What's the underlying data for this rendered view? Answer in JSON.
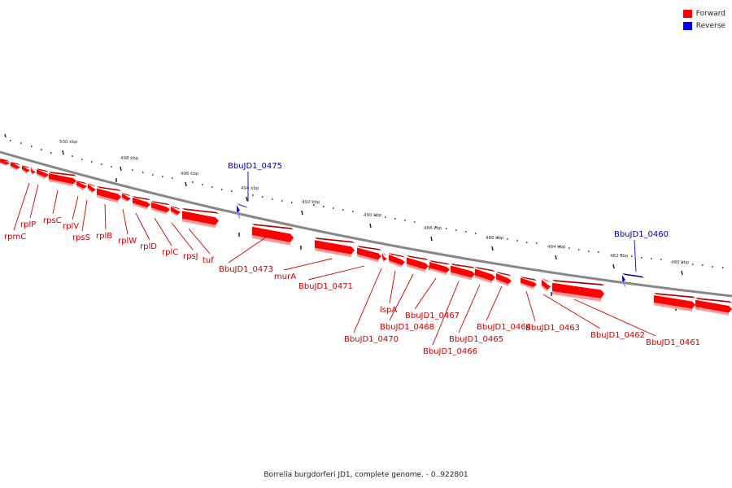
{
  "legend": {
    "items": [
      {
        "label": "Forward",
        "color": "#ff0000"
      },
      {
        "label": "Reverse",
        "color": "#0000ff"
      }
    ]
  },
  "caption": "Borrelia burgdorferi JD1, complete genome. - 0..922801",
  "colors": {
    "forward": "#ff0000",
    "forward_dark": "#b00000",
    "forward_shadow": "#ff9a9a",
    "reverse": "#0000ff",
    "reverse_dark": "#00009a",
    "reverse_shadow": "#9a9aff",
    "label_forward": "#cc0000",
    "label_reverse": "#0000aa",
    "backbone": "#888888"
  },
  "scale": {
    "unit": "kbp",
    "ticks": [
      {
        "label": "500 kbp"
      },
      {
        "label": "498 kbp"
      },
      {
        "label": "496 kbp"
      },
      {
        "label": "494 kbp"
      },
      {
        "label": "492 kbp"
      },
      {
        "label": "490 kbp"
      },
      {
        "label": "488 kbp"
      },
      {
        "label": "486 kbp"
      },
      {
        "label": "484 kbp"
      },
      {
        "label": "482 kbp"
      },
      {
        "label": "480 kbp"
      }
    ]
  },
  "genes": [
    {
      "name": "rpmC",
      "strand": "forward"
    },
    {
      "name": "rplP",
      "strand": "forward"
    },
    {
      "name": "rpsC",
      "strand": "forward"
    },
    {
      "name": "rplV",
      "strand": "forward"
    },
    {
      "name": "rpsS",
      "strand": "forward"
    },
    {
      "name": "rplB",
      "strand": "forward"
    },
    {
      "name": "rplW",
      "strand": "forward"
    },
    {
      "name": "rplD",
      "strand": "forward"
    },
    {
      "name": "rplC",
      "strand": "forward"
    },
    {
      "name": "rpsJ",
      "strand": "forward"
    },
    {
      "name": "tuf",
      "strand": "forward"
    },
    {
      "name": "BbuJD1_0475",
      "strand": "reverse"
    },
    {
      "name": "BbuJD1_0473",
      "strand": "forward"
    },
    {
      "name": "murA",
      "strand": "forward"
    },
    {
      "name": "BbuJD1_0471",
      "strand": "forward"
    },
    {
      "name": "BbuJD1_0470",
      "strand": "forward"
    },
    {
      "name": "lspA",
      "strand": "forward"
    },
    {
      "name": "BbuJD1_0468",
      "strand": "forward"
    },
    {
      "name": "BbuJD1_0467",
      "strand": "forward"
    },
    {
      "name": "BbuJD1_0466",
      "strand": "forward"
    },
    {
      "name": "BbuJD1_0465",
      "strand": "forward"
    },
    {
      "name": "BbuJD1_0464",
      "strand": "forward"
    },
    {
      "name": "BbuJD1_0463",
      "strand": "forward"
    },
    {
      "name": "BbuJD1_0462",
      "strand": "forward"
    },
    {
      "name": "BbuJD1_0461",
      "strand": "forward"
    },
    {
      "name": "BbuJD1_0460",
      "strand": "reverse"
    }
  ]
}
